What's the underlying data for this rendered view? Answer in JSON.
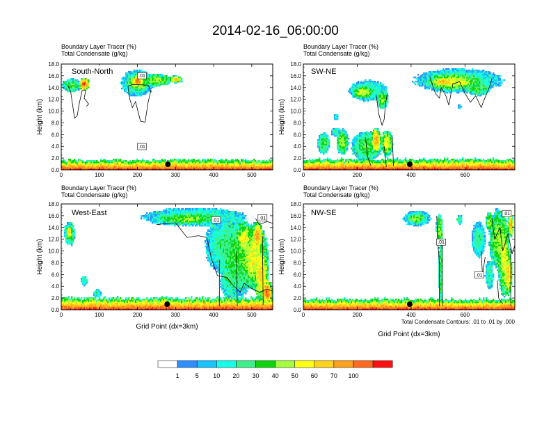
{
  "chart_data": {
    "title": "2014-02-16_06:00:00",
    "colorbar": {
      "colors": [
        "#ffffff",
        "#2f8fff",
        "#19c4ff",
        "#14ffe8",
        "#3cf08c",
        "#0ed50e",
        "#a4ff3c",
        "#ffff14",
        "#ffd21c",
        "#ffa01e",
        "#ff6a1e",
        "#ff1010"
      ],
      "labels": [
        "1",
        "5",
        "10",
        "20",
        "30",
        "40",
        "50",
        "60",
        "70",
        "100"
      ]
    },
    "contour_note": "Total Condensate Contours: .01 to .01 by .000",
    "panels": [
      {
        "type": "heatmap",
        "name": "South-North",
        "left_title": "Boundary Layer Tracer    (%)",
        "left_subtitle": "Total Condensate    (g/kg)",
        "xlim": [
          0,
          555
        ],
        "xticks": [
          "0",
          "100",
          "200",
          "300",
          "400",
          "500"
        ],
        "ylim": [
          0,
          18
        ],
        "yticks": [
          "0.0",
          "2.0",
          "4.0",
          "6.0",
          "8.0",
          "10.0",
          "12.0",
          "14.0",
          "16.0",
          "18.0"
        ],
        "ylabel": "Height (km)",
        "xlabel": "",
        "marker_x": 280,
        "contour_labels": [
          ".01",
          ".01"
        ],
        "surface_max": 1.7,
        "cloud_blobs": [
          {
            "xc": 28,
            "zc": 14.4,
            "rx": 25,
            "rz": 1.1,
            "v": 5
          },
          {
            "xc": 60,
            "zc": 14.6,
            "rx": 14,
            "rz": 1.0,
            "v": 10
          },
          {
            "xc": 200,
            "zc": 14.8,
            "rx": 42,
            "rz": 2.2,
            "v": 4
          },
          {
            "xc": 200,
            "zc": 15.0,
            "rx": 28,
            "rz": 1.5,
            "v": 7
          },
          {
            "xc": 200,
            "zc": 15.2,
            "rx": 14,
            "rz": 0.9,
            "v": 10
          },
          {
            "xc": 250,
            "zc": 15.3,
            "rx": 40,
            "rz": 1.0,
            "v": 6
          },
          {
            "xc": 300,
            "zc": 15.4,
            "rx": 18,
            "rz": 0.6,
            "v": 8
          }
        ],
        "contours": [
          [
            [
              18,
              14.3
            ],
            [
              25,
              13.2
            ],
            [
              30,
              11.0
            ],
            [
              35,
              8.8
            ],
            [
              42,
              9.2
            ],
            [
              48,
              11.5
            ],
            [
              55,
              13.5
            ],
            [
              65,
              13.6
            ],
            [
              60,
              12.2
            ],
            [
              72,
              11.2
            ],
            [
              66,
              10.8
            ]
          ],
          [
            [
              175,
              14.2
            ],
            [
              180,
              12.0
            ],
            [
              187,
              10.6
            ],
            [
              195,
              11.6
            ],
            [
              208,
              8.3
            ],
            [
              220,
              8.1
            ],
            [
              228,
              11.5
            ],
            [
              235,
              13.4
            ],
            [
              228,
              14.4
            ],
            [
              205,
              14.5
            ],
            [
              185,
              14.5
            ],
            [
              175,
              14.2
            ]
          ]
        ]
      },
      {
        "type": "heatmap",
        "name": "SW-NE",
        "left_title": "Boundary Layer Tracer    (%)",
        "left_subtitle": "Total Condensate    (g/kg)",
        "xlim": [
          0,
          785
        ],
        "xticks": [
          "0",
          "200",
          "400",
          "600"
        ],
        "ylim": [
          0,
          18
        ],
        "yticks": [
          "0.0",
          "2.0",
          "4.0",
          "6.0",
          "8.0",
          "10.0",
          "12.0",
          "14.0",
          "16.0",
          "18.0"
        ],
        "ylabel": "Height (km)",
        "xlabel": "",
        "marker_x": 395,
        "contour_labels": [],
        "surface_max": 1.8,
        "cloud_blobs": [
          {
            "xc": 575,
            "zc": 15.2,
            "rx": 160,
            "rz": 2.0,
            "v": 4
          },
          {
            "xc": 560,
            "zc": 15.0,
            "rx": 105,
            "rz": 1.4,
            "v": 7
          },
          {
            "xc": 520,
            "zc": 15.0,
            "rx": 40,
            "rz": 0.7,
            "v": 9
          },
          {
            "xc": 650,
            "zc": 14.0,
            "rx": 45,
            "rz": 1.3,
            "v": 5
          },
          {
            "xc": 240,
            "zc": 13.5,
            "rx": 70,
            "rz": 1.7,
            "v": 4
          },
          {
            "xc": 220,
            "zc": 13.2,
            "rx": 38,
            "rz": 1.0,
            "v": 7
          },
          {
            "xc": 295,
            "zc": 12.0,
            "rx": 20,
            "rz": 1.5,
            "v": 6
          },
          {
            "xc": 75,
            "zc": 4.5,
            "rx": 22,
            "rz": 1.8,
            "v": 5
          },
          {
            "xc": 145,
            "zc": 4.8,
            "rx": 22,
            "rz": 2.1,
            "v": 6
          },
          {
            "xc": 235,
            "zc": 4.0,
            "rx": 55,
            "rz": 2.5,
            "v": 5
          },
          {
            "xc": 270,
            "zc": 5.0,
            "rx": 18,
            "rz": 2.0,
            "v": 9
          },
          {
            "xc": 310,
            "zc": 4.5,
            "rx": 22,
            "rz": 2.2,
            "v": 7
          },
          {
            "xc": 120,
            "zc": 6.5,
            "rx": 18,
            "rz": 0.7,
            "v": 4
          },
          {
            "xc": 120,
            "zc": 9.0,
            "rx": 8,
            "rz": 0.6,
            "v": 3
          },
          {
            "xc": 580,
            "zc": 10.8,
            "rx": 7,
            "rz": 0.4,
            "v": 3
          }
        ],
        "contours": [
          [
            [
              470,
              15.8
            ],
            [
              490,
              13.0
            ],
            [
              505,
              12.2
            ],
            [
              512,
              14.0
            ],
            [
              530,
              12.5
            ],
            [
              540,
              11.0
            ],
            [
              555,
              14.6
            ],
            [
              580,
              15.0
            ],
            [
              600,
              13.0
            ],
            [
              620,
              11.5
            ],
            [
              640,
              12.6
            ],
            [
              660,
              10.6
            ],
            [
              670,
              11.8
            ],
            [
              690,
              14.0
            ],
            [
              700,
              15.5
            ]
          ],
          [
            [
              270,
              12.8
            ],
            [
              280,
              9.5
            ],
            [
              292,
              7.6
            ],
            [
              300,
              8.6
            ],
            [
              305,
              11.2
            ],
            [
              312,
              13.1
            ]
          ],
          [
            [
              230,
              5.5
            ],
            [
              240,
              2.0
            ],
            [
              250,
              0.8
            ]
          ],
          [
            [
              300,
              4.0
            ],
            [
              308,
              0.5
            ]
          ],
          [
            [
              330,
              5.6
            ],
            [
              335,
              0.6
            ]
          ]
        ]
      },
      {
        "type": "heatmap",
        "name": "West-East",
        "left_title": "Boundary Layer Tracer    (%)",
        "left_subtitle": "Total Condensate    (g/kg)",
        "xlim": [
          0,
          555
        ],
        "xticks": [
          "0",
          "100",
          "200",
          "300",
          "400",
          "500"
        ],
        "ylim": [
          0,
          18
        ],
        "yticks": [
          "0.0",
          "2.0",
          "4.0",
          "6.0",
          "8.0",
          "10.0",
          "12.0",
          "14.0",
          "16.0",
          "18.0"
        ],
        "ylabel": "Height (km)",
        "xlabel": "Grid Point (dx=3km)",
        "marker_x": 278,
        "contour_labels": [
          ".01",
          ".01"
        ],
        "surface_max": 2.0,
        "cloud_blobs": [
          {
            "xc": 22,
            "zc": 13.0,
            "rx": 14,
            "rz": 2.0,
            "v": 5
          },
          {
            "xc": 22,
            "zc": 13.3,
            "rx": 7,
            "rz": 1.0,
            "v": 8
          },
          {
            "xc": 350,
            "zc": 15.8,
            "rx": 135,
            "rz": 1.5,
            "v": 4
          },
          {
            "xc": 330,
            "zc": 15.5,
            "rx": 85,
            "rz": 0.9,
            "v": 6
          },
          {
            "xc": 425,
            "zc": 11.0,
            "rx": 45,
            "rz": 4.6,
            "v": 4
          },
          {
            "xc": 460,
            "zc": 9.0,
            "rx": 45,
            "rz": 6.8,
            "v": 5
          },
          {
            "xc": 480,
            "zc": 12.0,
            "rx": 22,
            "rz": 3.0,
            "v": 7
          },
          {
            "xc": 505,
            "zc": 9.0,
            "rx": 38,
            "rz": 5.5,
            "v": 7
          },
          {
            "xc": 515,
            "zc": 12.5,
            "rx": 14,
            "rz": 2.5,
            "v": 9
          },
          {
            "xc": 525,
            "zc": 6.0,
            "rx": 18,
            "rz": 4.5,
            "v": 8
          },
          {
            "xc": 540,
            "zc": 3.0,
            "rx": 14,
            "rz": 2.0,
            "v": 10
          },
          {
            "xc": 440,
            "zc": 5.0,
            "rx": 22,
            "rz": 3.0,
            "v": 4
          },
          {
            "xc": 60,
            "zc": 5.0,
            "rx": 8,
            "rz": 0.8,
            "v": 4
          },
          {
            "xc": 95,
            "zc": 2.8,
            "rx": 12,
            "rz": 0.6,
            "v": 4
          }
        ],
        "contours": [
          [
            [
              250,
              14.5
            ],
            [
              300,
              14.8
            ],
            [
              330,
              12.3
            ],
            [
              360,
              12.6
            ],
            [
              382,
              12.3
            ],
            [
              395,
              8.5
            ],
            [
              410,
              5.8
            ],
            [
              435,
              5.5
            ],
            [
              450,
              4.2
            ],
            [
              470,
              3.0
            ],
            [
              480,
              4.5
            ],
            [
              500,
              3.6
            ],
            [
              520,
              3.0
            ],
            [
              540,
              3.5
            ],
            [
              555,
              3.2
            ]
          ],
          [
            [
              510,
              15.5
            ],
            [
              520,
              14.5
            ],
            [
              540,
              15.0
            ],
            [
              555,
              14.7
            ]
          ],
          [
            [
              415,
              8.5
            ],
            [
              415,
              0.6
            ]
          ],
          [
            [
              460,
              10.0
            ],
            [
              462,
              0.6
            ]
          ],
          [
            [
              528,
              12.5
            ],
            [
              530,
              0.8
            ]
          ]
        ]
      },
      {
        "type": "heatmap",
        "name": "NW-SE",
        "left_title": "Boundary Layer Tracer    (%)",
        "left_subtitle": "Total Condensate    (g/kg)",
        "xlim": [
          0,
          785
        ],
        "xticks": [
          "0",
          "200",
          "400",
          "600"
        ],
        "ylim": [
          0,
          18
        ],
        "yticks": [
          "0.0",
          "2.0",
          "4.0",
          "6.0",
          "8.0",
          "10.0",
          "12.0",
          "14.0",
          "16.0",
          "18.0"
        ],
        "ylabel": "Height (km)",
        "xlabel": "Grid Point (dx=3km)",
        "marker_x": 395,
        "contour_labels": [
          ".01",
          ".01",
          ".01"
        ],
        "surface_max": 1.8,
        "cloud_blobs": [
          {
            "xc": 420,
            "zc": 15.6,
            "rx": 50,
            "rz": 1.3,
            "v": 4
          },
          {
            "xc": 420,
            "zc": 15.6,
            "rx": 28,
            "rz": 0.8,
            "v": 6
          },
          {
            "xc": 505,
            "zc": 13.8,
            "rx": 12,
            "rz": 2.5,
            "v": 6
          },
          {
            "xc": 510,
            "zc": 7.0,
            "rx": 7,
            "rz": 6.5,
            "v": 5
          },
          {
            "xc": 650,
            "zc": 12.0,
            "rx": 25,
            "rz": 3.0,
            "v": 4
          },
          {
            "xc": 725,
            "zc": 12.0,
            "rx": 35,
            "rz": 5.0,
            "v": 6
          },
          {
            "xc": 745,
            "zc": 9.0,
            "rx": 22,
            "rz": 6.5,
            "v": 7
          },
          {
            "xc": 760,
            "zc": 6.0,
            "rx": 14,
            "rz": 3.5,
            "v": 8
          },
          {
            "xc": 770,
            "zc": 14.5,
            "rx": 10,
            "rz": 2.0,
            "v": 9
          },
          {
            "xc": 690,
            "zc": 6.0,
            "rx": 15,
            "rz": 2.5,
            "v": 4
          },
          {
            "xc": 690,
            "zc": 15.0,
            "rx": 14,
            "rz": 1.5,
            "v": 6
          },
          {
            "xc": 580,
            "zc": 15.3,
            "rx": 10,
            "rz": 0.8,
            "v": 4
          }
        ],
        "contours": [
          [
            [
              495,
              16.0
            ],
            [
              500,
              11.0
            ],
            [
              505,
              8.0
            ],
            [
              505,
              0.6
            ]
          ],
          [
            [
              515,
              12.0
            ],
            [
              515,
              0.6
            ]
          ],
          [
            [
              700,
              15.5
            ],
            [
              710,
              12.0
            ],
            [
              730,
              14.0
            ],
            [
              740,
              10.0
            ],
            [
              760,
              13.0
            ],
            [
              775,
              9.5
            ],
            [
              785,
              11.0
            ]
          ],
          [
            [
              660,
              10.0
            ],
            [
              665,
              6.0
            ],
            [
              675,
              9.0
            ]
          ],
          [
            [
              720,
              5.0
            ],
            [
              725,
              2.0
            ],
            [
              740,
              1.0
            ]
          ],
          [
            [
              770,
              10.5
            ],
            [
              770,
              0.6
            ]
          ]
        ]
      }
    ]
  }
}
